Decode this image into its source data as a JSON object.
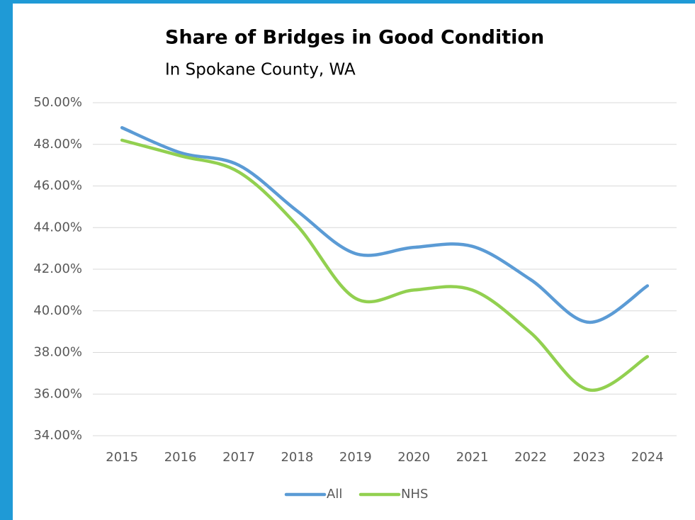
{
  "chart_data": {
    "type": "line",
    "title": "Share of Bridges in Good Condition",
    "subtitle": "In Spokane County, WA",
    "categories": [
      "2015",
      "2016",
      "2017",
      "2018",
      "2019",
      "2020",
      "2021",
      "2022",
      "2023",
      "2024"
    ],
    "series": [
      {
        "name": "All",
        "color": "#5b9bd5",
        "values": [
          48.8,
          47.6,
          47.0,
          44.8,
          42.75,
          43.05,
          43.1,
          41.5,
          39.45,
          41.2
        ]
      },
      {
        "name": "NHS",
        "color": "#92d050",
        "values": [
          48.2,
          47.45,
          46.67,
          44.1,
          40.6,
          41.0,
          41.0,
          38.95,
          36.2,
          37.8
        ]
      }
    ],
    "ylim": [
      34,
      50
    ],
    "yticks": [
      {
        "value": 34,
        "label": "34.00%"
      },
      {
        "value": 36,
        "label": "36.00%"
      },
      {
        "value": 38,
        "label": "38.00%"
      },
      {
        "value": 40,
        "label": "40.00%"
      },
      {
        "value": 42,
        "label": "42.00%"
      },
      {
        "value": 44,
        "label": "44.00%"
      },
      {
        "value": 46,
        "label": "46.00%"
      },
      {
        "value": 48,
        "label": "48.00%"
      },
      {
        "value": 50,
        "label": "50.00%"
      }
    ],
    "grid": true,
    "smooth": true,
    "legend": "bottom"
  }
}
